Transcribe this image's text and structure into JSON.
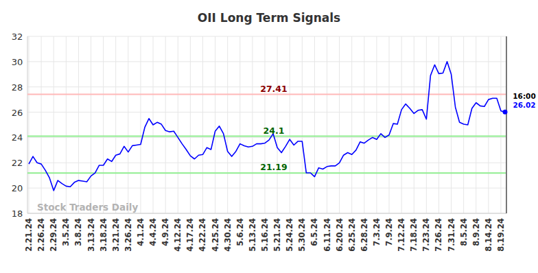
{
  "chart_data": {
    "type": "line",
    "title": "OII Long Term Signals",
    "watermark": "Stock Traders Daily",
    "last_time": "16:00",
    "color": "#0000ff",
    "marker": "last",
    "grid": true,
    "ylim": [
      18,
      32
    ],
    "yticks": [
      18,
      20,
      22,
      24,
      26,
      28,
      30,
      32
    ],
    "categories": [
      "2.21.24",
      null,
      null,
      "2.26.24",
      null,
      null,
      "2.29.24",
      null,
      null,
      "3.5.24",
      null,
      null,
      "3.8.24",
      null,
      null,
      "3.13.24",
      null,
      null,
      "3.18.24",
      null,
      null,
      "3.21.24",
      null,
      null,
      "3.26.24",
      null,
      null,
      "4.1.24",
      null,
      null,
      "4.4.24",
      null,
      null,
      "4.9.24",
      null,
      null,
      "4.12.24",
      null,
      null,
      "4.17.24",
      null,
      null,
      "4.22.24",
      null,
      null,
      "4.25.24",
      null,
      null,
      "4.30.24",
      null,
      null,
      "5.6.24",
      null,
      null,
      "5.13.24",
      null,
      null,
      "5.16.24",
      null,
      null,
      "5.21.24",
      null,
      null,
      "5.24.24",
      null,
      null,
      "5.30.24",
      null,
      null,
      "6.5.24",
      null,
      null,
      "6.11.24",
      null,
      null,
      "6.20.24",
      null,
      null,
      "6.25.24",
      null,
      null,
      "6.28.24",
      null,
      null,
      "7.3.24",
      null,
      null,
      "7.9.24",
      null,
      null,
      "7.12.24",
      null,
      null,
      "7.18.24",
      null,
      null,
      "7.23.24",
      null,
      null,
      "7.26.24",
      null,
      null,
      "7.31.24",
      null,
      null,
      "8.5.24",
      null,
      null,
      "8.9.24",
      null,
      null,
      "8.14.24",
      null,
      null,
      "8.19.24",
      null
    ],
    "values": [
      21.9,
      22.5,
      22.0,
      21.9,
      21.4,
      20.8,
      19.8,
      20.6,
      20.35,
      20.15,
      20.1,
      20.45,
      20.6,
      20.55,
      20.5,
      20.95,
      21.2,
      21.8,
      21.8,
      22.3,
      22.1,
      22.6,
      22.7,
      23.3,
      22.85,
      23.35,
      23.4,
      23.45,
      24.8,
      25.5,
      25.0,
      25.2,
      25.05,
      24.55,
      24.45,
      24.5,
      24.0,
      23.5,
      23.05,
      22.55,
      22.3,
      22.6,
      22.65,
      23.2,
      23.05,
      24.5,
      24.9,
      24.3,
      22.9,
      22.5,
      22.9,
      23.5,
      23.35,
      23.25,
      23.3,
      23.5,
      23.5,
      23.55,
      23.8,
      24.3,
      23.2,
      22.8,
      23.3,
      23.85,
      23.4,
      23.7,
      23.7,
      21.2,
      21.2,
      20.9,
      21.6,
      21.5,
      21.7,
      21.75,
      21.75,
      22.0,
      22.6,
      22.8,
      22.65,
      23.0,
      23.65,
      23.55,
      23.8,
      24.0,
      23.85,
      24.3,
      24.0,
      24.2,
      25.1,
      25.05,
      26.2,
      26.65,
      26.3,
      25.9,
      26.15,
      26.2,
      25.45,
      28.9,
      29.75,
      29.05,
      29.1,
      30.0,
      29.0,
      26.4,
      25.2,
      25.05,
      25.0,
      26.3,
      26.75,
      26.5,
      26.45,
      27.0,
      27.1,
      27.1,
      26.1,
      26.02
    ],
    "annotations": [
      {
        "type": "hline",
        "value": 27.41,
        "color": "#ffb8b8",
        "text_color": "#8b0000"
      },
      {
        "type": "hline",
        "value": 24.1,
        "color": "#90ee90",
        "text_color": "#006400"
      },
      {
        "type": "hline",
        "value": 21.19,
        "color": "#90ee90",
        "text_color": "#006400"
      }
    ]
  }
}
